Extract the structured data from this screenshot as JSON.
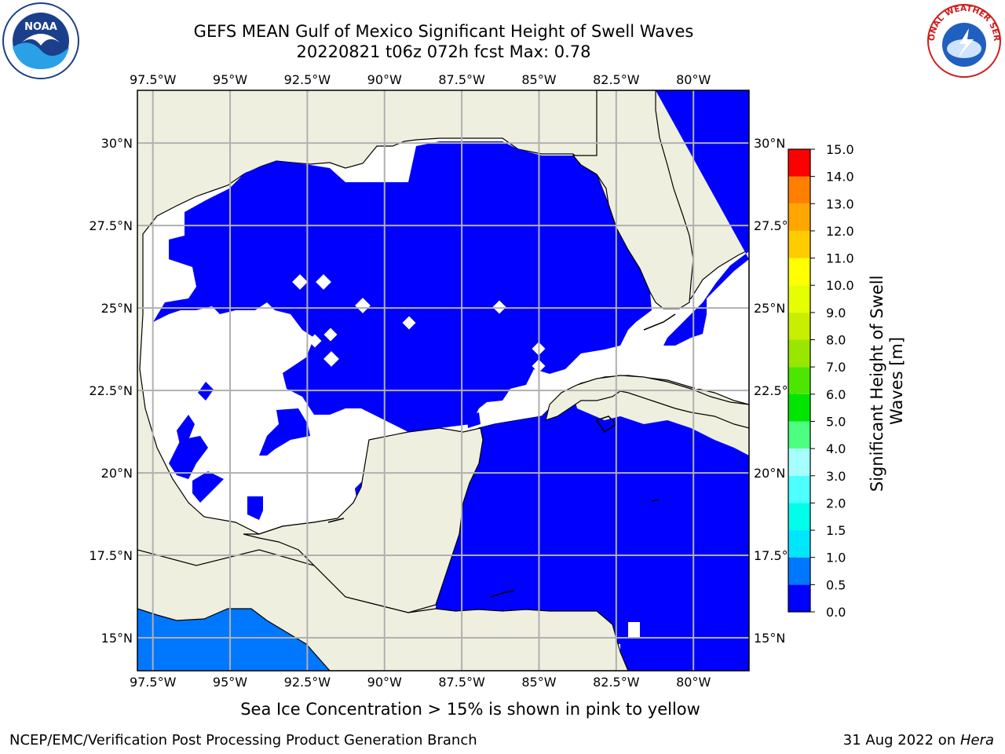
{
  "header": {
    "title_line1": "GEFS MEAN Gulf of Mexico Significant Height of Swell Waves",
    "title_line2": "20220821 t06z 072h fcst   Max: 0.78"
  },
  "logos": {
    "left": "NOAA",
    "right": "NATIONAL WEATHER SERVICE"
  },
  "map": {
    "lon_labels": [
      "97.5°W",
      "95°W",
      "92.5°W",
      "90°W",
      "87.5°W",
      "85°W",
      "82.5°W",
      "80°W"
    ],
    "lat_labels": [
      "30°N",
      "27.5°N",
      "25°N",
      "22.5°N",
      "20°N",
      "17.5°N",
      "15°N"
    ],
    "lon_values": [
      -97.5,
      -95,
      -92.5,
      -90,
      -87.5,
      -85,
      -82.5,
      -80
    ],
    "lat_values": [
      30,
      27.5,
      25,
      22.5,
      20,
      17.5,
      15
    ],
    "extent": {
      "lon_min": -98,
      "lon_max": -78.2,
      "lat_min": 14.0,
      "lat_max": 31.6
    },
    "colors": {
      "land": "#efefdf",
      "water_low": "#0000ff",
      "water_mid": "#0077ff",
      "no_data": "#ffffff",
      "grid": "#b0b0b0"
    }
  },
  "colorbar": {
    "label_line1": "Significant Height of Swell",
    "label_line2": "Waves [m]",
    "tick_labels": [
      "0.0",
      "0.5",
      "1.0",
      "1.5",
      "2.0",
      "3.0",
      "4.0",
      "5.0",
      "6.0",
      "7.0",
      "8.0",
      "9.0",
      "10.0",
      "11.0",
      "12.0",
      "13.0",
      "14.0",
      "15.0"
    ],
    "colors": [
      "#0000ff",
      "#0077ff",
      "#00e6ff",
      "#00ffea",
      "#4dffff",
      "#a6ffff",
      "#4cff80",
      "#00e600",
      "#4ce600",
      "#99e600",
      "#c8ee00",
      "#e6ff00",
      "#ffff00",
      "#ffcc00",
      "#ffa600",
      "#ff8000",
      "#ff4d00",
      "#ff0000"
    ]
  },
  "footer": {
    "note": "Sea Ice Concentration > 15% is shown in pink to yellow",
    "credit": "NCEP/EMC/Verification Post Processing Product Generation Branch",
    "date": "31 Aug 2022 on ",
    "host": "Hera"
  }
}
